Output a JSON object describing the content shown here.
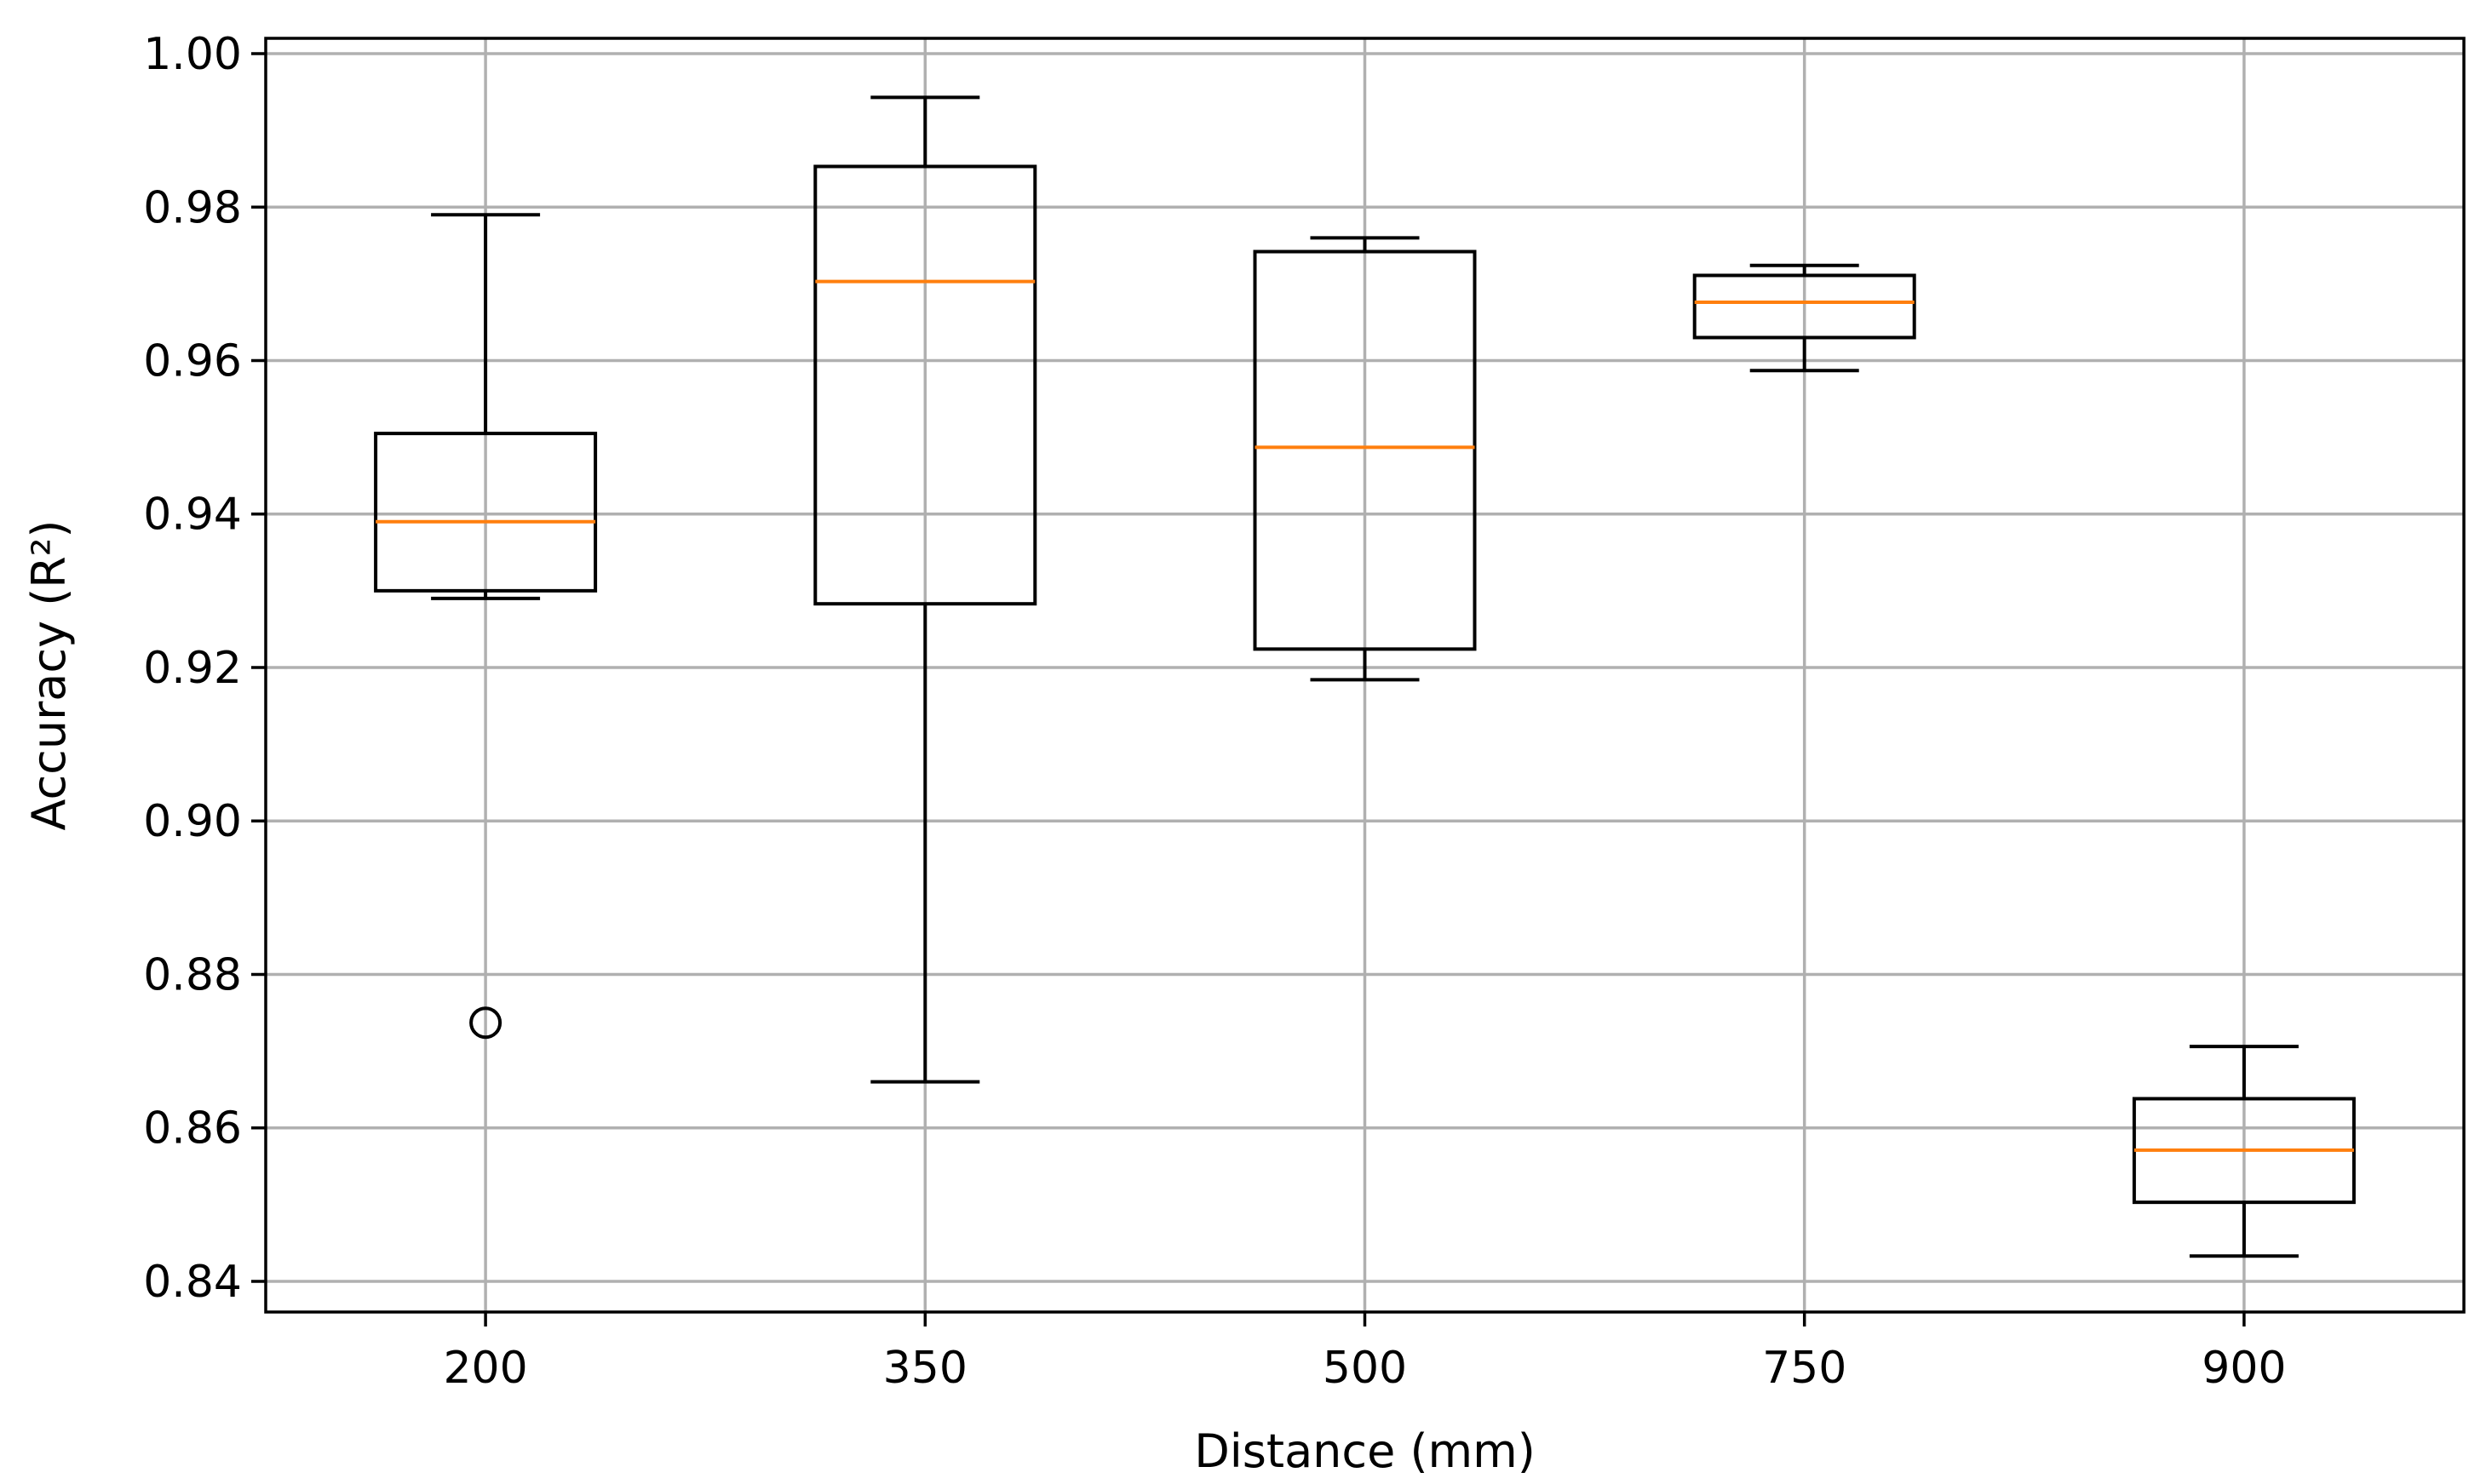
{
  "chart_data": {
    "type": "box",
    "xlabel": "Distance (mm)",
    "ylabel": "Accuracy (R²)",
    "ylim": [
      0.836,
      1.002
    ],
    "yticks": [
      0.84,
      0.86,
      0.88,
      0.9,
      0.92,
      0.94,
      0.96,
      0.98,
      1.0
    ],
    "ytick_labels": [
      "0.84",
      "0.86",
      "0.88",
      "0.90",
      "0.92",
      "0.94",
      "0.96",
      "0.98",
      "1.00"
    ],
    "grid": true,
    "colors": {
      "box": "#000000",
      "median": "#ff7f0e",
      "grid": "#b0b0b0"
    },
    "categories": [
      "200",
      "350",
      "500",
      "750",
      "900"
    ],
    "boxes": [
      {
        "label": "200",
        "whisker_low": 0.929,
        "q1": 0.93,
        "median": 0.939,
        "q3": 0.9505,
        "whisker_high": 0.979,
        "outliers": [
          0.8737
        ]
      },
      {
        "label": "350",
        "whisker_low": 0.866,
        "q1": 0.9283,
        "median": 0.9703,
        "q3": 0.9853,
        "whisker_high": 0.9943,
        "outliers": []
      },
      {
        "label": "500",
        "whisker_low": 0.9184,
        "q1": 0.9224,
        "median": 0.9487,
        "q3": 0.9742,
        "whisker_high": 0.976,
        "outliers": []
      },
      {
        "label": "750",
        "whisker_low": 0.9587,
        "q1": 0.963,
        "median": 0.9676,
        "q3": 0.9711,
        "whisker_high": 0.9724,
        "outliers": []
      },
      {
        "label": "900",
        "whisker_low": 0.8433,
        "q1": 0.8503,
        "median": 0.8571,
        "q3": 0.8638,
        "whisker_high": 0.8706,
        "outliers": []
      }
    ]
  }
}
